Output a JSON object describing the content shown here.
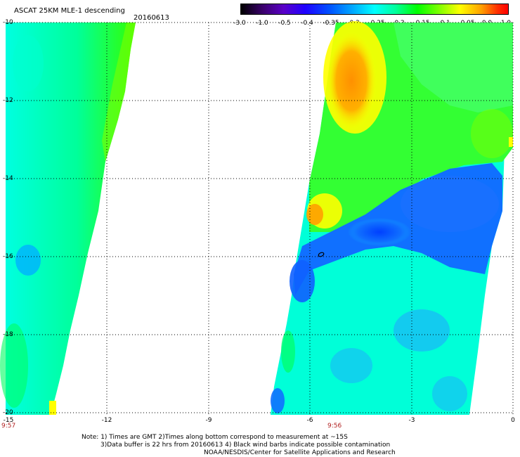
{
  "header": {
    "title": "ASCAT 25KM MLE-1 descending",
    "date": "20160613"
  },
  "colorbar": {
    "ticks": [
      "-3.0",
      "-1.0",
      "-0.5",
      "-0.4",
      "-0.35",
      "-0.3",
      "-0.25",
      "-0.2",
      "-0.15",
      "-0.1",
      "-0.05",
      "0.0",
      "1.0"
    ]
  },
  "axes": {
    "lat_labels": [
      "-10",
      "-12",
      "-14",
      "-16",
      "-18",
      "-20"
    ],
    "lon_labels": [
      "-15",
      "-12",
      "-9",
      "-6",
      "-3",
      "0"
    ],
    "lon_range": [
      -15,
      0
    ],
    "lat_range": [
      -20,
      -10
    ]
  },
  "times": {
    "left": "9:57",
    "right": "9:56"
  },
  "notes": {
    "line1": "Note: 1) Times are GMT 2)Times along bottom correspond to measurement at ~15S",
    "line2": "3)Data buffer is 22 hrs from 20160613 4) Black wind barbs indicate possible contamination",
    "line3": "NOAA/NESDIS/Center for Satellite Applications and Research"
  },
  "colors": {
    "grid": "#000000",
    "time_label": "#b22222"
  },
  "icons": {
    "contamination_marker": "ellipse-marker-icon"
  }
}
